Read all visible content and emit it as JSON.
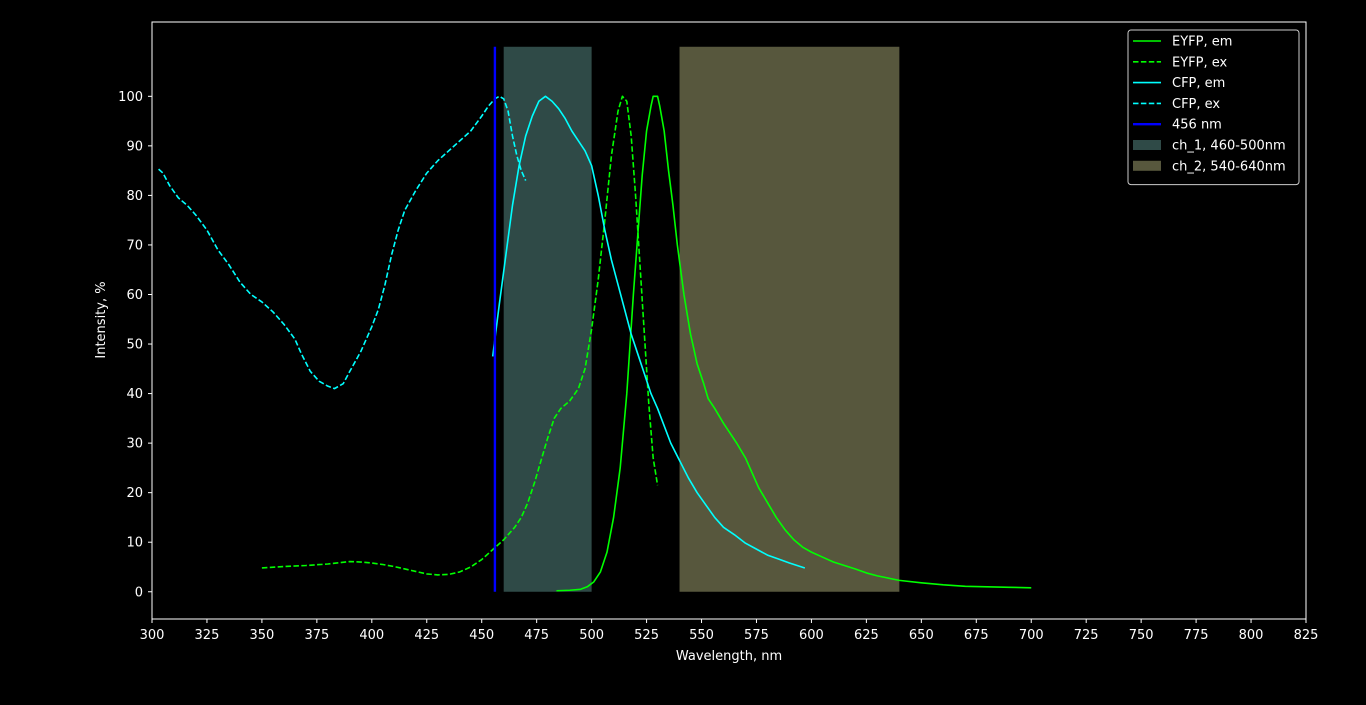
{
  "chart_data": {
    "type": "line",
    "title": "",
    "xlabel": "Wavelength, nm",
    "ylabel": "Intensity, %",
    "xlim": [
      300,
      825
    ],
    "ylim": [
      -5.5,
      115
    ],
    "xticks": [
      300,
      325,
      350,
      375,
      400,
      425,
      450,
      475,
      500,
      525,
      550,
      575,
      600,
      625,
      650,
      675,
      700,
      725,
      750,
      775,
      800,
      825
    ],
    "yticks": [
      0,
      10,
      20,
      30,
      40,
      50,
      60,
      70,
      80,
      90,
      100
    ],
    "grid": false,
    "legend_position": "top-right",
    "background": "#000000",
    "series": [
      {
        "name": "EYFP, em",
        "color": "#00ff00",
        "style": "solid",
        "points": [
          [
            484,
            0.2
          ],
          [
            490,
            0.3
          ],
          [
            495,
            0.5
          ],
          [
            498,
            1
          ],
          [
            501,
            2
          ],
          [
            504,
            4
          ],
          [
            507,
            8
          ],
          [
            510,
            15
          ],
          [
            513,
            25
          ],
          [
            516,
            40
          ],
          [
            519,
            60
          ],
          [
            521,
            72
          ],
          [
            523,
            84
          ],
          [
            525,
            93
          ],
          [
            527,
            98
          ],
          [
            528,
            100
          ],
          [
            530,
            100
          ],
          [
            531,
            98
          ],
          [
            533,
            93
          ],
          [
            535,
            85
          ],
          [
            537,
            78
          ],
          [
            539,
            70
          ],
          [
            542,
            60
          ],
          [
            545,
            52
          ],
          [
            548,
            46
          ],
          [
            551,
            42
          ],
          [
            553,
            39
          ],
          [
            556,
            37
          ],
          [
            560,
            34
          ],
          [
            563,
            32
          ],
          [
            566,
            30
          ],
          [
            570,
            27
          ],
          [
            573,
            24
          ],
          [
            576,
            21
          ],
          [
            580,
            18
          ],
          [
            584,
            15
          ],
          [
            588,
            12.5
          ],
          [
            592,
            10.5
          ],
          [
            596,
            9
          ],
          [
            600,
            8
          ],
          [
            605,
            7
          ],
          [
            610,
            6
          ],
          [
            615,
            5.3
          ],
          [
            620,
            4.6
          ],
          [
            625,
            3.8
          ],
          [
            630,
            3.2
          ],
          [
            640,
            2.3
          ],
          [
            650,
            1.8
          ],
          [
            660,
            1.4
          ],
          [
            670,
            1.1
          ],
          [
            680,
            1
          ],
          [
            690,
            0.9
          ],
          [
            700,
            0.8
          ]
        ]
      },
      {
        "name": "EYFP, ex",
        "color": "#00ff00",
        "style": "dashed",
        "points": [
          [
            350,
            4.8
          ],
          [
            360,
            5.1
          ],
          [
            370,
            5.3
          ],
          [
            380,
            5.6
          ],
          [
            390,
            6.1
          ],
          [
            395,
            6
          ],
          [
            400,
            5.8
          ],
          [
            405,
            5.5
          ],
          [
            410,
            5.1
          ],
          [
            415,
            4.6
          ],
          [
            420,
            4.1
          ],
          [
            425,
            3.6
          ],
          [
            430,
            3.4
          ],
          [
            435,
            3.5
          ],
          [
            440,
            4
          ],
          [
            445,
            5
          ],
          [
            450,
            6.5
          ],
          [
            455,
            8.5
          ],
          [
            460,
            10.5
          ],
          [
            465,
            13
          ],
          [
            468,
            15
          ],
          [
            471,
            18
          ],
          [
            474,
            22
          ],
          [
            477,
            26.5
          ],
          [
            480,
            31
          ],
          [
            483,
            35
          ],
          [
            486,
            37
          ],
          [
            490,
            38.5
          ],
          [
            494,
            41
          ],
          [
            497,
            45
          ],
          [
            500,
            53
          ],
          [
            503,
            63
          ],
          [
            506,
            75
          ],
          [
            509,
            88
          ],
          [
            512,
            97
          ],
          [
            514,
            100
          ],
          [
            516,
            99
          ],
          [
            518,
            92
          ],
          [
            520,
            80
          ],
          [
            522,
            66
          ],
          [
            524,
            52
          ],
          [
            526,
            38
          ],
          [
            528,
            27
          ],
          [
            530,
            21.5
          ]
        ]
      },
      {
        "name": "CFP, em",
        "color": "#00ffff",
        "style": "solid",
        "points": [
          [
            455,
            47.5
          ],
          [
            458,
            58
          ],
          [
            461,
            68
          ],
          [
            464,
            78
          ],
          [
            467,
            86
          ],
          [
            470,
            92
          ],
          [
            473,
            96
          ],
          [
            476,
            99
          ],
          [
            479,
            100
          ],
          [
            482,
            99
          ],
          [
            485,
            97.5
          ],
          [
            488,
            95.5
          ],
          [
            491,
            93
          ],
          [
            494,
            91
          ],
          [
            497,
            89
          ],
          [
            500,
            86
          ],
          [
            503,
            80
          ],
          [
            506,
            73
          ],
          [
            509,
            67
          ],
          [
            512,
            62
          ],
          [
            515,
            57
          ],
          [
            518,
            52
          ],
          [
            521,
            48
          ],
          [
            524,
            44
          ],
          [
            527,
            40
          ],
          [
            530,
            37
          ],
          [
            533,
            33.5
          ],
          [
            536,
            30
          ],
          [
            540,
            26.5
          ],
          [
            544,
            23
          ],
          [
            548,
            20
          ],
          [
            552,
            17.5
          ],
          [
            556,
            15
          ],
          [
            560,
            13
          ],
          [
            565,
            11.5
          ],
          [
            570,
            9.8
          ],
          [
            575,
            8.6
          ],
          [
            580,
            7.4
          ],
          [
            585,
            6.6
          ],
          [
            590,
            5.8
          ],
          [
            597,
            4.8
          ]
        ]
      },
      {
        "name": "CFP, ex",
        "color": "#00ffff",
        "style": "dashed",
        "points": [
          [
            303,
            85.3
          ],
          [
            305,
            84.5
          ],
          [
            308,
            82
          ],
          [
            312,
            79.5
          ],
          [
            316,
            78
          ],
          [
            320,
            76
          ],
          [
            325,
            73
          ],
          [
            330,
            69
          ],
          [
            335,
            66
          ],
          [
            340,
            62.5
          ],
          [
            345,
            60
          ],
          [
            350,
            58.5
          ],
          [
            355,
            56.5
          ],
          [
            360,
            54
          ],
          [
            365,
            51
          ],
          [
            368,
            48
          ],
          [
            372,
            44.5
          ],
          [
            376,
            42.5
          ],
          [
            380,
            41.5
          ],
          [
            383,
            41
          ],
          [
            387,
            42
          ],
          [
            390,
            44.5
          ],
          [
            395,
            48.5
          ],
          [
            400,
            53.5
          ],
          [
            403,
            57
          ],
          [
            406,
            62
          ],
          [
            409,
            68
          ],
          [
            412,
            73
          ],
          [
            415,
            77
          ],
          [
            420,
            81
          ],
          [
            425,
            84.5
          ],
          [
            430,
            87
          ],
          [
            435,
            89
          ],
          [
            440,
            91
          ],
          [
            445,
            93
          ],
          [
            450,
            96
          ],
          [
            453,
            98
          ],
          [
            456,
            99.5
          ],
          [
            458,
            100
          ],
          [
            460,
            99.5
          ],
          [
            462,
            97
          ],
          [
            464,
            92
          ],
          [
            466,
            88
          ],
          [
            468,
            85
          ],
          [
            470,
            83
          ]
        ]
      }
    ],
    "vlines": [
      {
        "name": "456 nm",
        "x": 456,
        "ymin": 0,
        "ymax": 110,
        "color": "#0000ff"
      }
    ],
    "bands": [
      {
        "name": "ch_1, 460-500nm",
        "x0": 460,
        "x1": 500,
        "ymin": 0,
        "ymax": 110,
        "color": "#2f4a47"
      },
      {
        "name": "ch_2, 540-640nm",
        "x0": 540,
        "x1": 640,
        "ymin": 0,
        "ymax": 110,
        "color": "#57573d"
      }
    ],
    "legend": [
      {
        "label": "EYFP, em",
        "kind": "line",
        "style": "solid",
        "color": "#00ff00"
      },
      {
        "label": "EYFP, ex",
        "kind": "line",
        "style": "dashed",
        "color": "#00ff00"
      },
      {
        "label": "CFP, em",
        "kind": "line",
        "style": "solid",
        "color": "#00ffff"
      },
      {
        "label": "CFP, ex",
        "kind": "line",
        "style": "dashed",
        "color": "#00ffff"
      },
      {
        "label": "456 nm",
        "kind": "line",
        "style": "solid",
        "color": "#0000ff"
      },
      {
        "label": "ch_1, 460-500nm",
        "kind": "patch",
        "color": "#2f4a47"
      },
      {
        "label": "ch_2, 540-640nm",
        "kind": "patch",
        "color": "#57573d"
      }
    ]
  }
}
